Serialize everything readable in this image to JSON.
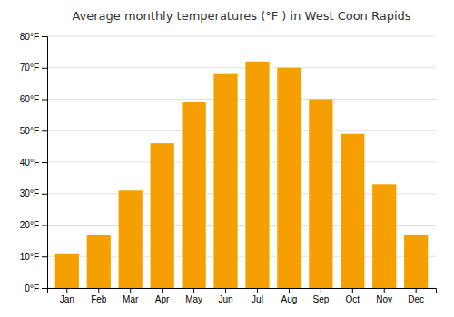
{
  "chart_data": {
    "type": "bar",
    "title": "Average monthly temperatures (°F ) in West Coon Rapids",
    "categories": [
      "Jan",
      "Feb",
      "Mar",
      "Apr",
      "May",
      "Jun",
      "Jul",
      "Aug",
      "Sep",
      "Oct",
      "Nov",
      "Dec"
    ],
    "values": [
      11,
      17,
      31,
      46,
      59,
      68,
      72,
      70,
      60,
      49,
      33,
      17
    ],
    "color": "#F5A000",
    "ylim": [
      0,
      80
    ],
    "yticks": [
      {
        "value": 0,
        "label": "0°F"
      },
      {
        "value": 10,
        "label": "10°F"
      },
      {
        "value": 20,
        "label": "20°F"
      },
      {
        "value": 30,
        "label": "30°F"
      },
      {
        "value": 40,
        "label": "40°F"
      },
      {
        "value": 50,
        "label": "50°F"
      },
      {
        "value": 60,
        "label": "60°F"
      },
      {
        "value": 70,
        "label": "70°F"
      },
      {
        "value": 80,
        "label": "80°F"
      }
    ],
    "grid": true
  }
}
